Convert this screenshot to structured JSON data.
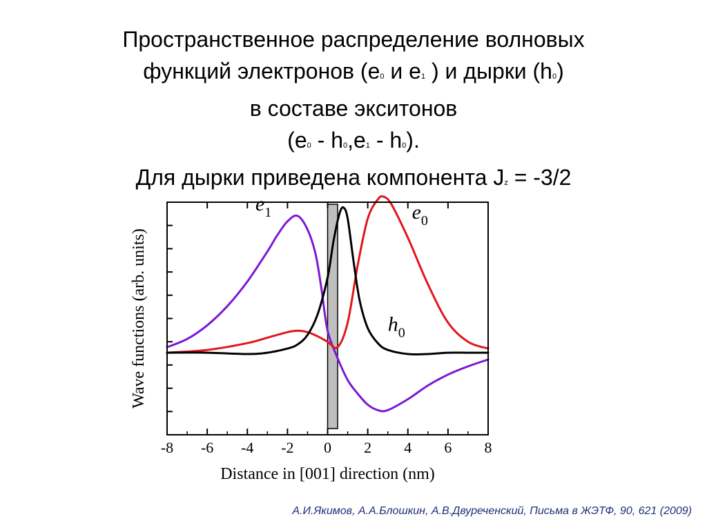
{
  "slide": {
    "title_lines": [
      [
        {
          "t": "Пространственное распределение волновых"
        }
      ],
      [
        {
          "t": "функций электронов (e"
        },
        {
          "sub": "0"
        },
        {
          "t": "  и e"
        },
        {
          "sub": "1"
        },
        {
          "t": " ) и дырки (h"
        },
        {
          "sub": "0"
        },
        {
          "t": ")"
        }
      ],
      [
        {
          "t": "в составе экситонов"
        }
      ],
      [
        {
          "t": "(e"
        },
        {
          "sub": "0"
        },
        {
          "t": " - h"
        },
        {
          "sub": "0"
        },
        {
          "t": ",e"
        },
        {
          "sub": "1"
        },
        {
          "t": " - h"
        },
        {
          "sub": "0"
        },
        {
          "t": ")."
        }
      ],
      [
        {
          "t": "Для дырки приведена компонента J"
        },
        {
          "sub": "z"
        },
        {
          "t": " = -3/2"
        }
      ]
    ],
    "citation": "А.И.Якимов, А.А.Блошкин, А.В.Двуреченский, Письма в ЖЭТФ, 90, 621 (2009)"
  },
  "chart_data": {
    "type": "line",
    "xlabel": "Distance in [001] direction (nm)",
    "ylabel": "Wave functions (arb. units)",
    "xlim": [
      -8,
      8
    ],
    "ylim": [
      -0.6,
      1.1
    ],
    "x_ticks": [
      -8,
      -6,
      -4,
      -2,
      0,
      2,
      4,
      6,
      8
    ],
    "x_tick_labels": [
      "-8",
      "-6",
      "-4",
      "-2",
      "0",
      "2",
      "4",
      "6",
      "8"
    ],
    "y_tick_labels": false,
    "grid": false,
    "shaded_region": {
      "x": [
        0,
        0.5
      ],
      "color": "#bfbfbf"
    },
    "series": [
      {
        "label": "e",
        "label_sub": "1",
        "color": "#7a17d6",
        "x": [
          -8,
          -7,
          -6,
          -5,
          -4,
          -3,
          -2.5,
          -2,
          -1.5,
          -1,
          -0.6,
          -0.3,
          0,
          0.5,
          1,
          1.5,
          2,
          2.5,
          3,
          4,
          5,
          6,
          7,
          8
        ],
        "y": [
          0.04,
          0.1,
          0.2,
          0.34,
          0.52,
          0.74,
          0.86,
          0.96,
          1.0,
          0.9,
          0.72,
          0.46,
          0.16,
          -0.04,
          -0.2,
          -0.3,
          -0.38,
          -0.42,
          -0.42,
          -0.34,
          -0.24,
          -0.16,
          -0.1,
          -0.05
        ]
      },
      {
        "label": "e",
        "label_sub": "0",
        "color": "#e0151b",
        "x": [
          -8,
          -6,
          -4,
          -3,
          -2,
          -1.5,
          -1,
          -0.5,
          0,
          0.5,
          1,
          1.5,
          2,
          2.5,
          2.8,
          3.2,
          4,
          5,
          6,
          7,
          8
        ],
        "y": [
          0.0,
          0.02,
          0.07,
          0.11,
          0.15,
          0.16,
          0.15,
          0.12,
          0.08,
          0.04,
          0.22,
          0.64,
          0.98,
          1.12,
          1.14,
          1.08,
          0.84,
          0.5,
          0.22,
          0.08,
          0.03
        ]
      },
      {
        "label": "h",
        "label_sub": "0",
        "color": "#000000",
        "x": [
          -8,
          -6,
          -4,
          -3,
          -2,
          -1.5,
          -1,
          -0.5,
          0,
          0.3,
          0.6,
          0.8,
          1,
          1.3,
          1.6,
          2,
          2.5,
          3,
          4,
          5,
          6,
          7,
          8
        ],
        "y": [
          0.0,
          0.0,
          -0.01,
          0.0,
          0.03,
          0.06,
          0.13,
          0.28,
          0.55,
          0.82,
          1.02,
          1.06,
          0.98,
          0.66,
          0.38,
          0.18,
          0.07,
          0.02,
          -0.01,
          -0.01,
          0.0,
          0.0,
          0.0
        ]
      }
    ]
  }
}
